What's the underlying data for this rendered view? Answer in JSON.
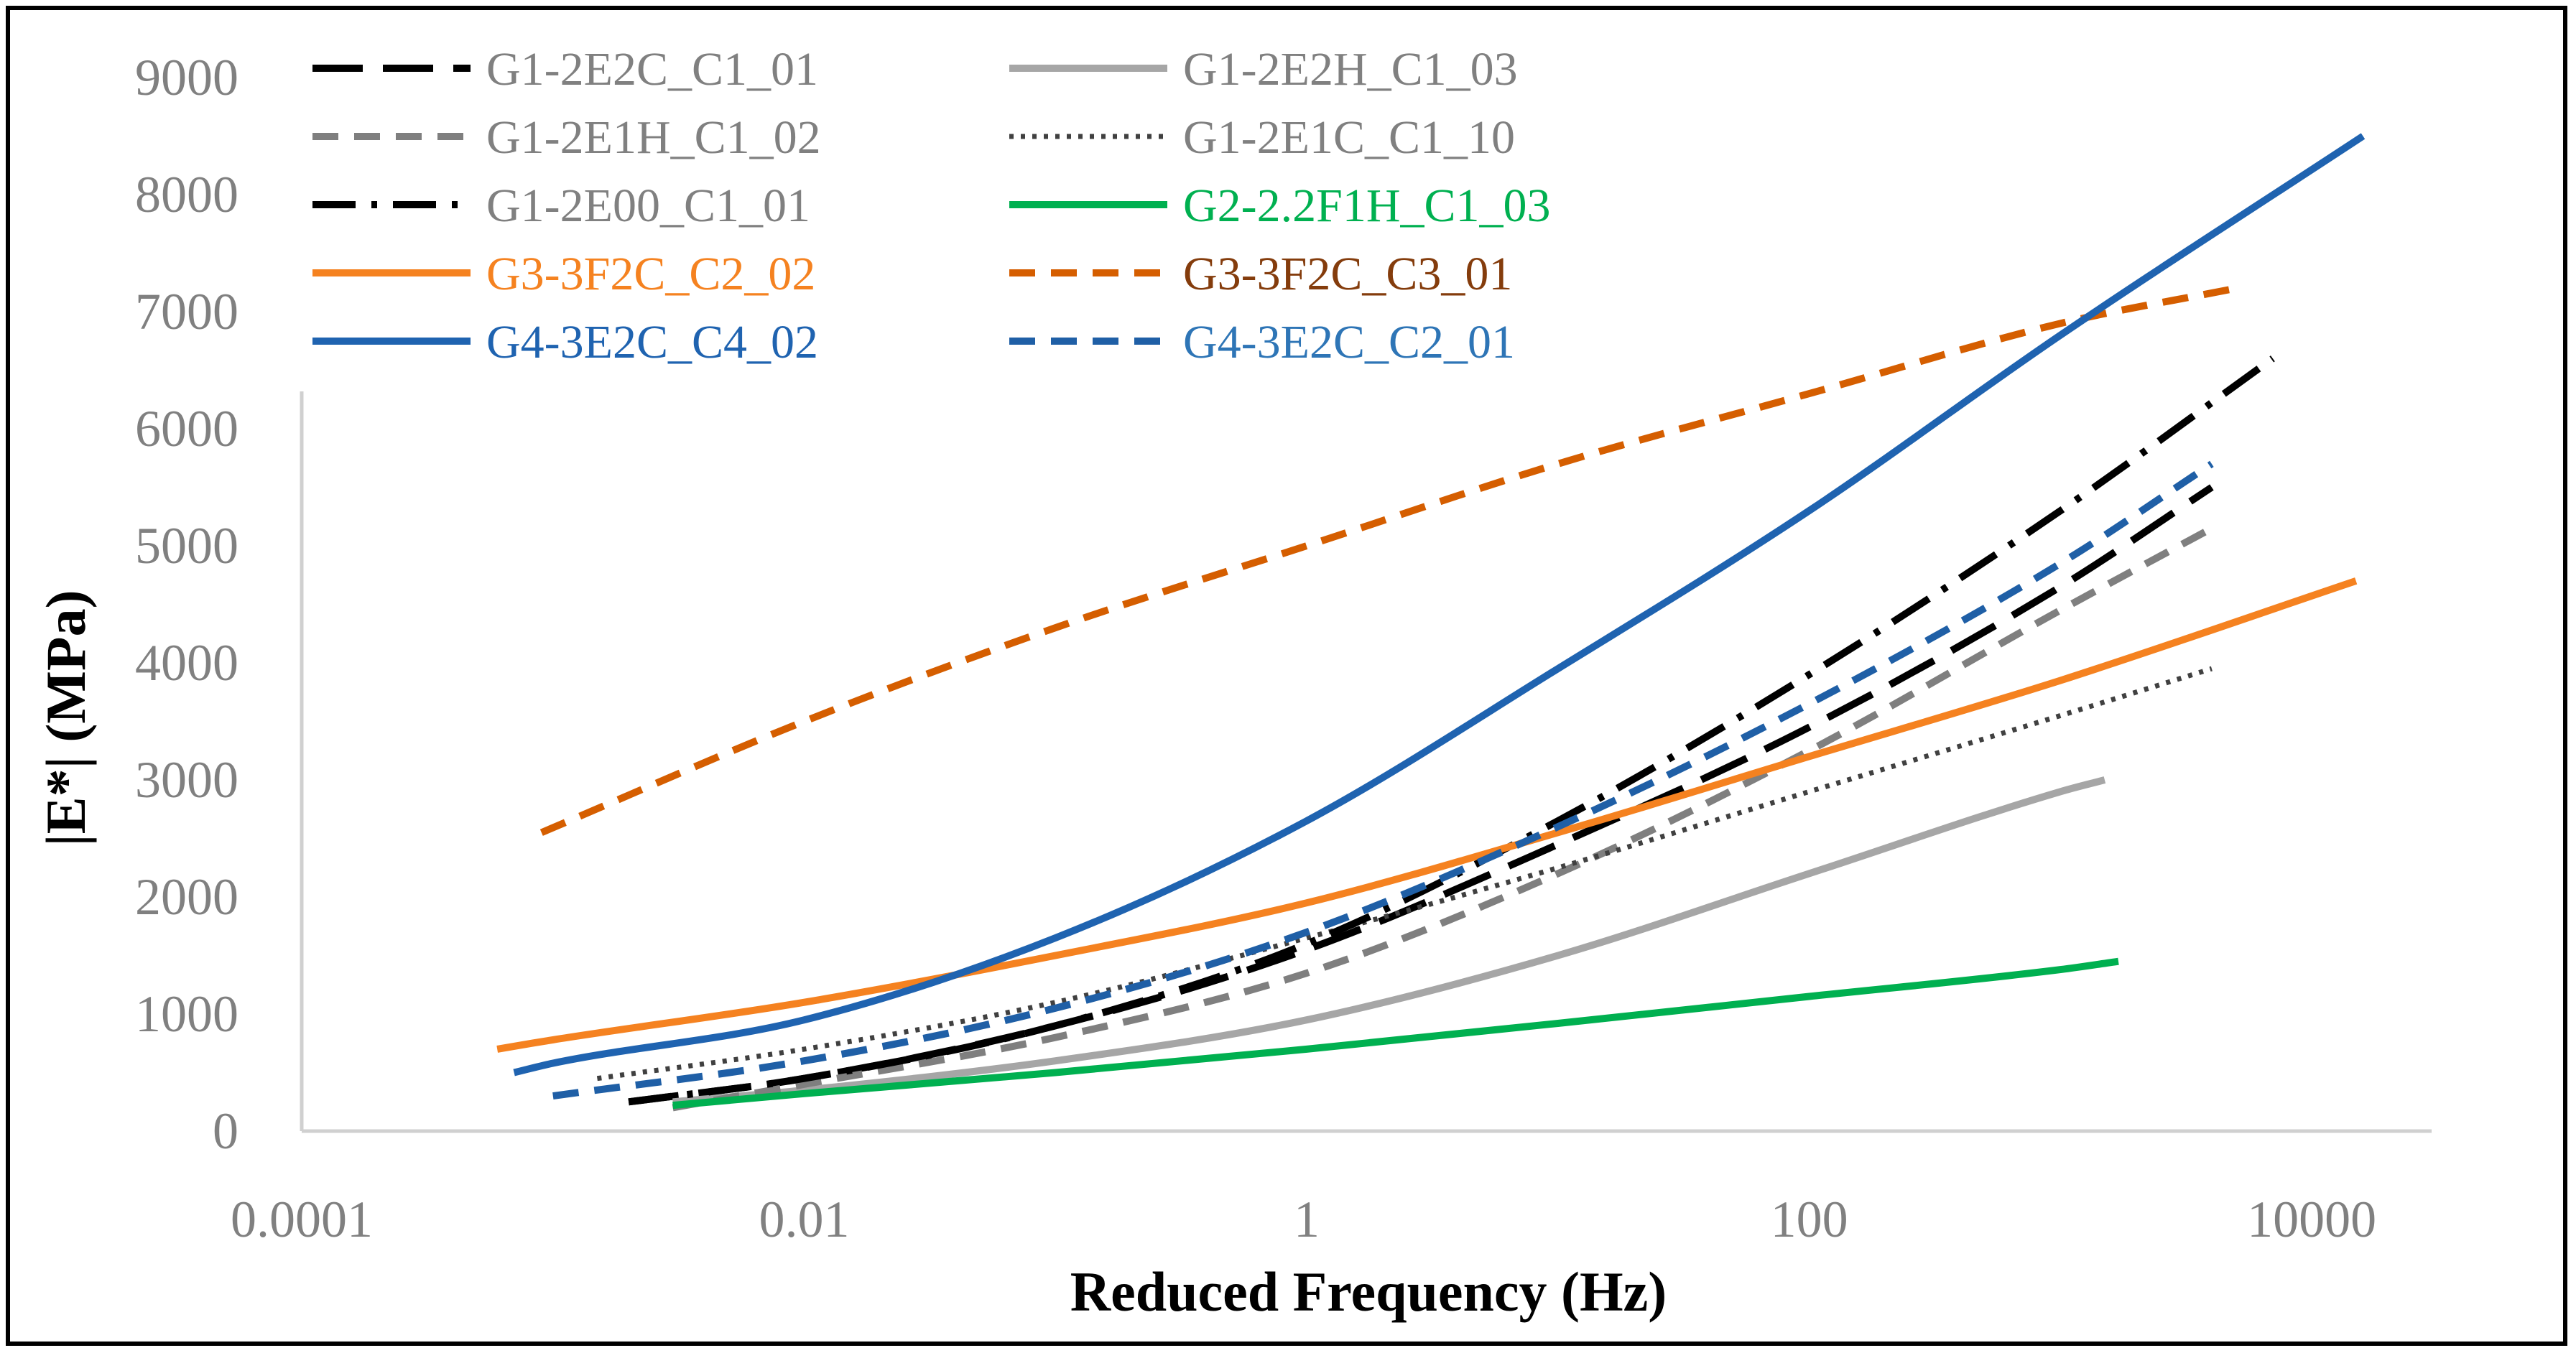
{
  "chart_data": {
    "type": "line",
    "title": "",
    "xlabel": "Reduced Frequency (Hz)",
    "ylabel": "|E*| (MPa)",
    "xscale": "log",
    "xlim": [
      0.0001,
      30000
    ],
    "ylim": [
      0,
      9000
    ],
    "grid": false,
    "legend_position": "top",
    "x_ticks": [
      {
        "value": 0.0001,
        "label": "0.0001"
      },
      {
        "value": 0.01,
        "label": "0.01"
      },
      {
        "value": 1,
        "label": "1"
      },
      {
        "value": 100,
        "label": "100"
      },
      {
        "value": 10000,
        "label": "10000"
      }
    ],
    "y_ticks": [
      {
        "value": 0,
        "label": "0"
      },
      {
        "value": 1000,
        "label": "1000"
      },
      {
        "value": 2000,
        "label": "2000"
      },
      {
        "value": 3000,
        "label": "3000"
      },
      {
        "value": 4000,
        "label": "4000"
      },
      {
        "value": 5000,
        "label": "5000"
      },
      {
        "value": 6000,
        "label": "6000"
      },
      {
        "value": 7000,
        "label": "7000"
      },
      {
        "value": 8000,
        "label": "8000"
      },
      {
        "value": 9000,
        "label": "9000"
      }
    ],
    "series": [
      {
        "name": "G1-2E2C_C1_01",
        "color": "#000000",
        "text_color": "#808080",
        "dash": "long-dash",
        "x": [
          0.002,
          0.01,
          0.1,
          1,
          10,
          100,
          1000,
          4000
        ],
        "y": [
          250,
          450,
          900,
          1550,
          2450,
          3450,
          4650,
          5500
        ]
      },
      {
        "name": "G1-2E2H_C1_03",
        "color": "#a6a6a6",
        "text_color": "#808080",
        "dash": "solid",
        "x": [
          0.003,
          0.01,
          0.1,
          1,
          10,
          100,
          1000,
          1500
        ],
        "y": [
          250,
          350,
          600,
          950,
          1500,
          2200,
          2900,
          3000
        ]
      },
      {
        "name": "G1-2E1H_C1_02",
        "color": "#7f7f7f",
        "text_color": "#808080",
        "dash": "dash",
        "x": [
          0.003,
          0.01,
          0.1,
          1,
          10,
          100,
          1000,
          4000
        ],
        "y": [
          200,
          400,
          800,
          1350,
          2200,
          3250,
          4450,
          5150
        ]
      },
      {
        "name": "G1-2E1C_C1_10",
        "color": "#404040",
        "text_color": "#808080",
        "dash": "dot",
        "x": [
          0.0015,
          0.01,
          0.1,
          1,
          10,
          100,
          1000,
          4000
        ],
        "y": [
          450,
          700,
          1100,
          1650,
          2250,
          2900,
          3550,
          3950
        ]
      },
      {
        "name": "G1-2E00_C1_01",
        "color": "#000000",
        "text_color": "#808080",
        "dash": "dash-dot",
        "x": [
          0.002,
          0.01,
          0.1,
          1,
          10,
          100,
          1000,
          7000
        ],
        "y": [
          250,
          450,
          900,
          1600,
          2650,
          3900,
          5300,
          6600
        ]
      },
      {
        "name": "G2-2.2F1H_C1_03",
        "color": "#00b050",
        "text_color": "#00b050",
        "dash": "solid",
        "x": [
          0.003,
          0.01,
          0.1,
          1,
          10,
          100,
          1000,
          1700
        ],
        "y": [
          220,
          320,
          500,
          700,
          920,
          1150,
          1380,
          1450
        ]
      },
      {
        "name": "G3-3F2C_C2_02",
        "color": "#f58220",
        "text_color": "#f58220",
        "dash": "solid",
        "x": [
          0.0006,
          0.001,
          0.01,
          0.1,
          1,
          10,
          100,
          1000,
          15000
        ],
        "y": [
          700,
          780,
          1100,
          1500,
          1950,
          2550,
          3200,
          3850,
          4700
        ]
      },
      {
        "name": "G3-3F2C_C3_01",
        "color": "#d55e00",
        "text_color": "#843c0c",
        "dash": "dash",
        "x": [
          0.0009,
          0.01,
          0.1,
          1,
          10,
          100,
          1000,
          5000
        ],
        "y": [
          2550,
          3500,
          4300,
          5000,
          5700,
          6300,
          6900,
          7200
        ]
      },
      {
        "name": "G4-3E2C_C4_02",
        "color": "#1f63b0",
        "text_color": "#1f63b0",
        "dash": "solid",
        "x": [
          0.0007,
          0.001,
          0.01,
          0.1,
          1,
          10,
          100,
          1000,
          16000
        ],
        "y": [
          500,
          580,
          950,
          1650,
          2650,
          3950,
          5300,
          6800,
          8500
        ]
      },
      {
        "name": "G4-3E2C_C2_01",
        "color": "#1f5fa6",
        "text_color": "#2e75b6",
        "dash": "dash",
        "x": [
          0.001,
          0.01,
          0.1,
          1,
          10,
          100,
          1000,
          4000
        ],
        "y": [
          300,
          600,
          1050,
          1700,
          2600,
          3650,
          4850,
          5700
        ]
      }
    ]
  }
}
